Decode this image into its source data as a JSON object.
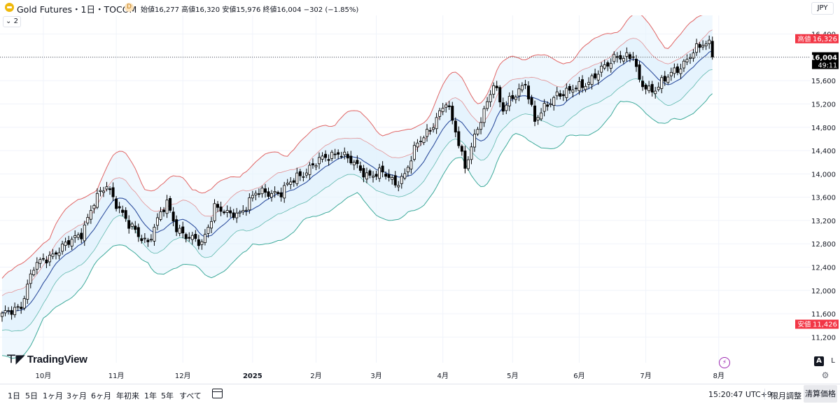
{
  "header": {
    "symbol": "Gold Futures・1日・TOCOM",
    "d_badge": "D",
    "ohlc": "始値16,277  高値16,320  安値15,976  終値16,004",
    "change": "−302 (−1.85%)",
    "currency": "JPY",
    "indicator_count": "2"
  },
  "colors": {
    "up_candle": "#ffffff",
    "down_candle": "#000000",
    "upper_band": "#e06666",
    "middle_band": "#2e4f9e",
    "lower_band": "#3daa9a",
    "band_fill": "#e3f2fd",
    "high_label": "#f23645",
    "last_price": "#000000"
  },
  "branding": {
    "logo": "TradingView"
  },
  "right_controls": {
    "a": "A",
    "l": "L"
  },
  "bottom": {
    "ranges": [
      "1日",
      "5日",
      "1ヶ月",
      "3ヶ月",
      "6ヶ月",
      "年初来",
      "1年",
      "5年",
      "すべて"
    ],
    "time": "15:20:47 UTC+9",
    "adjust": "限月調整",
    "settle": "清算価格"
  },
  "chart_data": {
    "type": "candlestick",
    "title": "Gold Futures・1日・TOCOM",
    "ylim": [
      11000,
      16600
    ],
    "y_ticks": [
      11200,
      11600,
      12000,
      12400,
      12800,
      13200,
      13600,
      14000,
      14400,
      14800,
      15200,
      15600,
      16000,
      16400
    ],
    "y_tick_labels": [
      "11,200",
      "11,600",
      "12,000",
      "12,400",
      "12,800",
      "13,200",
      "13,600",
      "14,000",
      "14,400",
      "14,800",
      "15,200",
      "15,600",
      "16,000",
      "16,400"
    ],
    "x_labels": [
      {
        "label": "10月",
        "index": 13
      },
      {
        "label": "11月",
        "index": 36
      },
      {
        "label": "12月",
        "index": 57
      },
      {
        "label": "2025",
        "index": 79
      },
      {
        "label": "2月",
        "index": 99
      },
      {
        "label": "3月",
        "index": 118
      },
      {
        "label": "4月",
        "index": 139
      },
      {
        "label": "5月",
        "index": 161
      },
      {
        "label": "6月",
        "index": 182
      },
      {
        "label": "7月",
        "index": 203
      },
      {
        "label": "8月",
        "index": 226
      }
    ],
    "x_count": 232,
    "anchors": [
      [
        0,
        11550
      ],
      [
        6,
        11760
      ],
      [
        10,
        12380
      ],
      [
        14,
        12570
      ],
      [
        20,
        12760
      ],
      [
        25,
        13000
      ],
      [
        29,
        13500
      ],
      [
        33,
        13800
      ],
      [
        35,
        13620
      ],
      [
        40,
        13100
      ],
      [
        43,
        12950
      ],
      [
        46,
        12850
      ],
      [
        50,
        13300
      ],
      [
        52,
        13480
      ],
      [
        55,
        13100
      ],
      [
        59,
        12880
      ],
      [
        63,
        12800
      ],
      [
        67,
        13450
      ],
      [
        71,
        13280
      ],
      [
        75,
        13350
      ],
      [
        80,
        13650
      ],
      [
        85,
        13700
      ],
      [
        88,
        13670
      ],
      [
        93,
        13950
      ],
      [
        98,
        14150
      ],
      [
        103,
        14300
      ],
      [
        106,
        14400
      ],
      [
        111,
        14150
      ],
      [
        115,
        14000
      ],
      [
        120,
        14000
      ],
      [
        124,
        13850
      ],
      [
        127,
        14000
      ],
      [
        131,
        14500
      ],
      [
        135,
        14800
      ],
      [
        140,
        15200
      ],
      [
        143,
        14750
      ],
      [
        146,
        14150
      ],
      [
        149,
        14600
      ],
      [
        152,
        15050
      ],
      [
        155,
        15600
      ],
      [
        158,
        15100
      ],
      [
        162,
        15350
      ],
      [
        165,
        15600
      ],
      [
        168,
        14900
      ],
      [
        171,
        15100
      ],
      [
        175,
        15400
      ],
      [
        179,
        15400
      ],
      [
        183,
        15520
      ],
      [
        187,
        15700
      ],
      [
        191,
        15850
      ],
      [
        194,
        16050
      ],
      [
        199,
        16000
      ],
      [
        201,
        15550
      ],
      [
        205,
        15450
      ],
      [
        209,
        15600
      ],
      [
        213,
        15800
      ],
      [
        217,
        16050
      ],
      [
        221,
        16200
      ],
      [
        223,
        16240
      ],
      [
        224,
        16004
      ]
    ],
    "last_close": 16004,
    "last_countdown": "49:11",
    "session_high": 16326,
    "session_high_label": "高値",
    "session_low": 11426,
    "session_low_label": "安値",
    "band_half_width": 700,
    "band_inner_half_width": 330
  }
}
